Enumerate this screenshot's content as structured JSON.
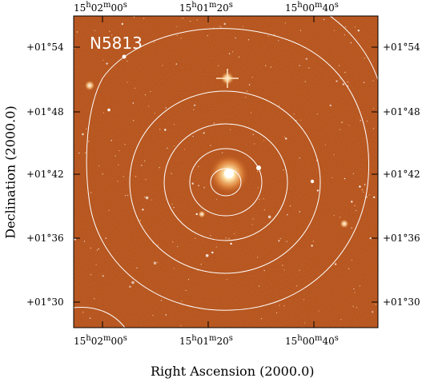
{
  "image": {
    "field_label": "N5813",
    "sky_color": "#b14a12",
    "contour_color": "#ffffff"
  },
  "axes": {
    "x_title": "Right Ascension (2000.0)",
    "y_title": "Declination (2000.0)",
    "ra_ticks": [
      {
        "h": "15",
        "m": "02",
        "s": "00"
      },
      {
        "h": "15",
        "m": "01",
        "s": "20"
      },
      {
        "h": "15",
        "m": "00",
        "s": "40"
      }
    ],
    "dec_ticks": [
      "+01°54",
      "+01°48",
      "+01°42",
      "+01°36",
      "+01°30"
    ]
  }
}
